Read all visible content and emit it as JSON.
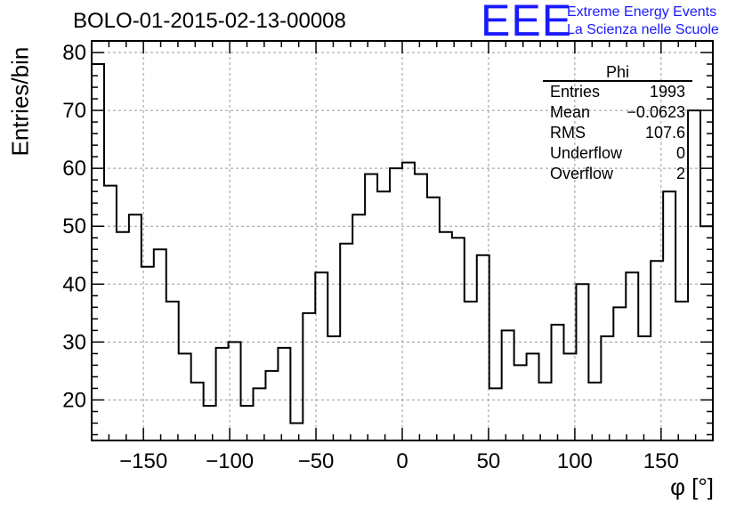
{
  "chart_data": {
    "type": "bar",
    "title": "BOLO-01-2015-02-13-00008",
    "xlabel": "φ [°]",
    "ylabel": "Entries/bin",
    "xlim": [
      -180,
      180
    ],
    "ylim": [
      13,
      82
    ],
    "grid": true,
    "x_ticks": [
      -150,
      -100,
      -50,
      0,
      50,
      100,
      150
    ],
    "y_ticks": [
      20,
      30,
      40,
      50,
      60,
      70,
      80
    ],
    "x_tick_labels": [
      "−150",
      "−100",
      "−50",
      "0",
      "50",
      "100",
      "150"
    ],
    "y_tick_labels": [
      "20",
      "30",
      "40",
      "50",
      "60",
      "70",
      "80"
    ],
    "bin_width": 7.2,
    "values": [
      78,
      57,
      49,
      52,
      43,
      46,
      37,
      28,
      23,
      19,
      29,
      30,
      19,
      22,
      25,
      29,
      16,
      35,
      42,
      31,
      47,
      52,
      59,
      56,
      60,
      61,
      59,
      55,
      49,
      48,
      37,
      45,
      22,
      32,
      26,
      28,
      23,
      33,
      28,
      40,
      23,
      31,
      36,
      42,
      31,
      44,
      56,
      37,
      70,
      50
    ]
  },
  "stats_box": {
    "title": "Phi",
    "rows": [
      {
        "label": "Entries",
        "value": "1993"
      },
      {
        "label": "Mean",
        "value": "−0.0623"
      },
      {
        "label": "RMS",
        "value": "107.6"
      },
      {
        "label": "Underflow",
        "value": "0"
      },
      {
        "label": "Overflow",
        "value": "2"
      }
    ]
  },
  "logo": {
    "mark": "EEE",
    "line1": "Extreme Energy Events",
    "line2": "La Scienza nelle Scuole",
    "color": "#1a1aff"
  }
}
